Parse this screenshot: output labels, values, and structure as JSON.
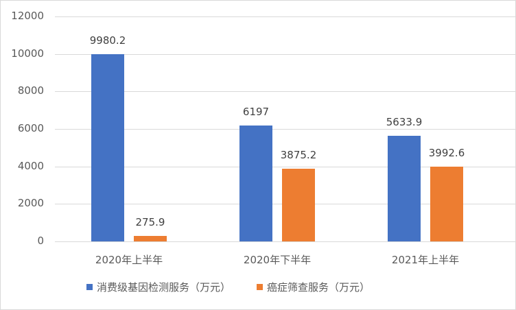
{
  "chart_data": {
    "type": "bar",
    "title": "",
    "xlabel": "",
    "ylabel": "",
    "categories": [
      "2020年上半年",
      "2020年下半年",
      "2021年上半年"
    ],
    "series": [
      {
        "name": "消费级基因检测服务（万元）",
        "color": "#4472C4",
        "values": [
          9980.2,
          6197,
          5633.9
        ]
      },
      {
        "name": "癌症筛查服务（万元）",
        "color": "#ED7D31",
        "values": [
          275.9,
          3875.2,
          3992.6
        ]
      }
    ],
    "data_labels": {
      "series0": [
        "9980.2",
        "6197",
        "5633.9"
      ],
      "series1": [
        "275.9",
        "3875.2",
        "3992.6"
      ]
    },
    "ylim": [
      0,
      12000
    ],
    "yticks": [
      "0",
      "2000",
      "4000",
      "6000",
      "8000",
      "10000",
      "12000"
    ],
    "grid": true,
    "legend_position": "bottom"
  }
}
